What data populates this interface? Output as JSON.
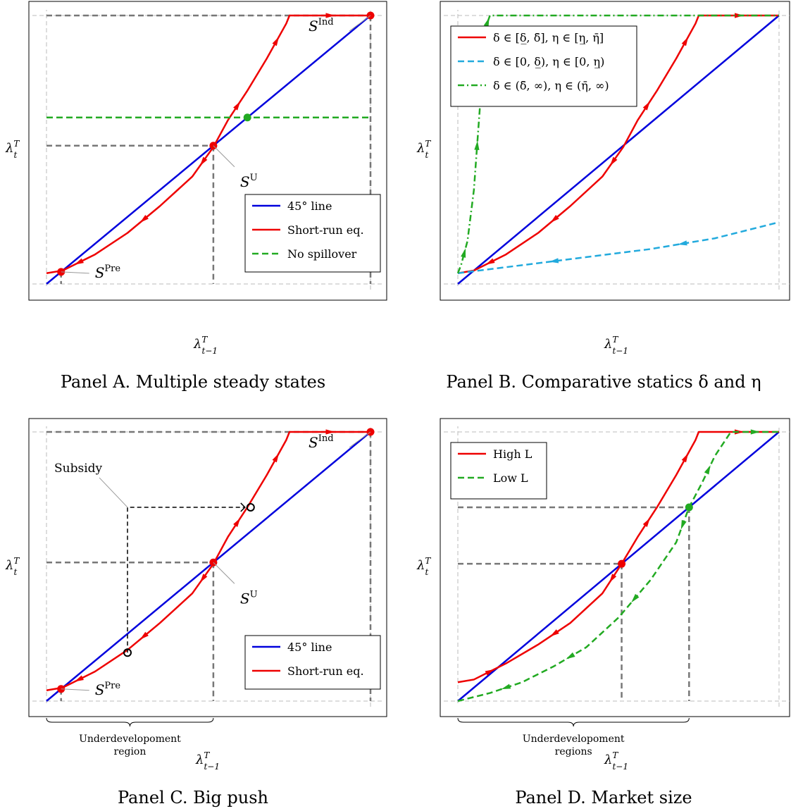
{
  "chart_data": [
    {
      "panel": "A",
      "type": "line",
      "caption": "Panel A. Multiple steady states",
      "xlabel": "λ_{t−1}^T",
      "ylabel": "λ_t^T",
      "xlim": [
        0,
        1
      ],
      "ylim": [
        0,
        1
      ],
      "grid": false,
      "legend_position": "bottom-right",
      "series": [
        {
          "name": "45° line",
          "color": "#0000dd",
          "style": "solid",
          "points": [
            [
              0,
              0
            ],
            [
              1,
              1
            ]
          ]
        },
        {
          "name": "Short-run eq.",
          "color": "#ee0000",
          "style": "solid",
          "arrows": true,
          "points": [
            [
              0.0,
              0.04
            ],
            [
              0.05,
              0.05
            ],
            [
              0.15,
              0.11
            ],
            [
              0.25,
              0.19
            ],
            [
              0.35,
              0.29
            ],
            [
              0.45,
              0.4
            ],
            [
              0.515,
              0.51
            ],
            [
              0.56,
              0.61
            ],
            [
              0.62,
              0.72
            ],
            [
              0.68,
              0.84
            ],
            [
              0.74,
              0.97
            ],
            [
              0.75,
              1.0
            ],
            [
              1,
              1
            ]
          ]
        },
        {
          "name": "No spillover",
          "color": "#22aa22",
          "style": "dashed",
          "points": [
            [
              0,
              0.62
            ],
            [
              1,
              0.62
            ]
          ]
        }
      ],
      "points": [
        {
          "label": "S",
          "sup": "Pre",
          "x": 0.045,
          "y": 0.045,
          "color": "#ee0000"
        },
        {
          "label": "S",
          "sup": "U",
          "x": 0.515,
          "y": 0.515,
          "color": "#ee0000"
        },
        {
          "label": "S",
          "sup": "Ind",
          "x": 1,
          "y": 1,
          "color": "#ee0000"
        },
        {
          "label": "",
          "x": 0.62,
          "y": 0.62,
          "color": "#22aa22"
        }
      ]
    },
    {
      "panel": "B",
      "type": "line",
      "caption": "Panel B. Comparative statics δ and η",
      "xlabel": "λ_{t−1}^T",
      "ylabel": "λ_t^T",
      "xlim": [
        0,
        1
      ],
      "ylim": [
        0,
        1
      ],
      "grid": false,
      "legend_position": "top-left",
      "series": [
        {
          "name": "45° line",
          "color": "#0000dd",
          "style": "solid",
          "points": [
            [
              0,
              0
            ],
            [
              1,
              1
            ]
          ]
        },
        {
          "name": "δ ∈ [δ̲, δ̄], η ∈ [η̲, η̄]",
          "color": "#ee0000",
          "style": "solid",
          "arrows": true,
          "points": [
            [
              0,
              0.04
            ],
            [
              0.05,
              0.05
            ],
            [
              0.15,
              0.11
            ],
            [
              0.25,
              0.19
            ],
            [
              0.35,
              0.29
            ],
            [
              0.45,
              0.4
            ],
            [
              0.515,
              0.51
            ],
            [
              0.56,
              0.61
            ],
            [
              0.62,
              0.72
            ],
            [
              0.68,
              0.84
            ],
            [
              0.74,
              0.97
            ],
            [
              0.75,
              1.0
            ],
            [
              1,
              1
            ]
          ]
        },
        {
          "name": "δ ∈ [0, δ̲), η ∈ [0, η̲)",
          "color": "#22aadd",
          "style": "dashed",
          "arrows": true,
          "points": [
            [
              0,
              0.04
            ],
            [
              0.2,
              0.07
            ],
            [
              0.4,
              0.1
            ],
            [
              0.6,
              0.13
            ],
            [
              0.8,
              0.17
            ],
            [
              1,
              0.23
            ]
          ]
        },
        {
          "name": "δ ∈ (δ̄, ∞), η ∈ (η̄, ∞)",
          "color": "#22aa22",
          "style": "dashdot",
          "arrows": true,
          "points": [
            [
              0,
              0.04
            ],
            [
              0.01,
              0.07
            ],
            [
              0.03,
              0.16
            ],
            [
              0.05,
              0.35
            ],
            [
              0.07,
              0.68
            ],
            [
              0.085,
              0.95
            ],
            [
              0.1,
              1.0
            ],
            [
              1,
              1
            ]
          ]
        }
      ]
    },
    {
      "panel": "C",
      "type": "line",
      "caption": "Panel C. Big push",
      "xlabel": "λ_{t−1}^T",
      "ylabel": "λ_t^T",
      "xlim": [
        0,
        1
      ],
      "ylim": [
        0,
        1
      ],
      "grid": false,
      "legend_position": "bottom-right",
      "series": [
        {
          "name": "45° line",
          "color": "#0000dd",
          "style": "solid",
          "points": [
            [
              0,
              0
            ],
            [
              1,
              1
            ]
          ]
        },
        {
          "name": "Short-run eq.",
          "color": "#ee0000",
          "style": "solid",
          "arrows": true,
          "points": [
            [
              0.0,
              0.04
            ],
            [
              0.05,
              0.05
            ],
            [
              0.15,
              0.11
            ],
            [
              0.25,
              0.19
            ],
            [
              0.35,
              0.29
            ],
            [
              0.45,
              0.4
            ],
            [
              0.515,
              0.51
            ],
            [
              0.56,
              0.61
            ],
            [
              0.62,
              0.72
            ],
            [
              0.68,
              0.84
            ],
            [
              0.74,
              0.97
            ],
            [
              0.75,
              1.0
            ],
            [
              1,
              1
            ]
          ]
        }
      ],
      "points": [
        {
          "label": "S",
          "sup": "Pre",
          "x": 0.045,
          "y": 0.045,
          "color": "#ee0000"
        },
        {
          "label": "S",
          "sup": "U",
          "x": 0.515,
          "y": 0.515,
          "color": "#ee0000"
        },
        {
          "label": "S",
          "sup": "Ind",
          "x": 1,
          "y": 1,
          "color": "#ee0000"
        }
      ],
      "annotations": [
        {
          "text": "Subsidy",
          "from": [
            0.25,
            0.18
          ],
          "to": [
            0.63,
            0.72
          ]
        }
      ],
      "brace_label": "Underdevelopoment region",
      "brace_range": [
        0,
        0.515
      ]
    },
    {
      "panel": "D",
      "type": "line",
      "caption": "Panel D. Market size",
      "xlabel": "λ_{t−1}^T",
      "ylabel": "λ_t^T",
      "xlim": [
        0,
        1
      ],
      "ylim": [
        0,
        1
      ],
      "grid": false,
      "legend_position": "top-left",
      "series": [
        {
          "name": "45° line",
          "color": "#0000dd",
          "style": "solid",
          "points": [
            [
              0,
              0
            ],
            [
              1,
              1
            ]
          ]
        },
        {
          "name": "High L",
          "color": "#ee0000",
          "style": "solid",
          "arrows": true,
          "points": [
            [
              0,
              0.07
            ],
            [
              0.05,
              0.08
            ],
            [
              0.15,
              0.14
            ],
            [
              0.25,
              0.21
            ],
            [
              0.35,
              0.29
            ],
            [
              0.45,
              0.4
            ],
            [
              0.51,
              0.51
            ],
            [
              0.56,
              0.61
            ],
            [
              0.62,
              0.72
            ],
            [
              0.68,
              0.84
            ],
            [
              0.74,
              0.97
            ],
            [
              0.75,
              1.0
            ],
            [
              1,
              1
            ]
          ]
        },
        {
          "name": "Low L",
          "color": "#22aa22",
          "style": "dashed",
          "arrows": true,
          "points": [
            [
              0,
              0
            ],
            [
              0.1,
              0.03
            ],
            [
              0.2,
              0.07
            ],
            [
              0.3,
              0.13
            ],
            [
              0.4,
              0.2
            ],
            [
              0.5,
              0.31
            ],
            [
              0.6,
              0.45
            ],
            [
              0.68,
              0.59
            ],
            [
              0.72,
              0.72
            ],
            [
              0.76,
              0.81
            ],
            [
              0.8,
              0.91
            ],
            [
              0.85,
              1.0
            ],
            [
              1,
              1
            ]
          ]
        }
      ],
      "points": [
        {
          "label": "",
          "x": 0.51,
          "y": 0.51,
          "color": "#ee0000"
        },
        {
          "label": "",
          "x": 0.72,
          "y": 0.72,
          "color": "#22aa22"
        }
      ],
      "brace_label": "Underdevelopoment regions",
      "brace_range": [
        0,
        0.72
      ]
    }
  ]
}
